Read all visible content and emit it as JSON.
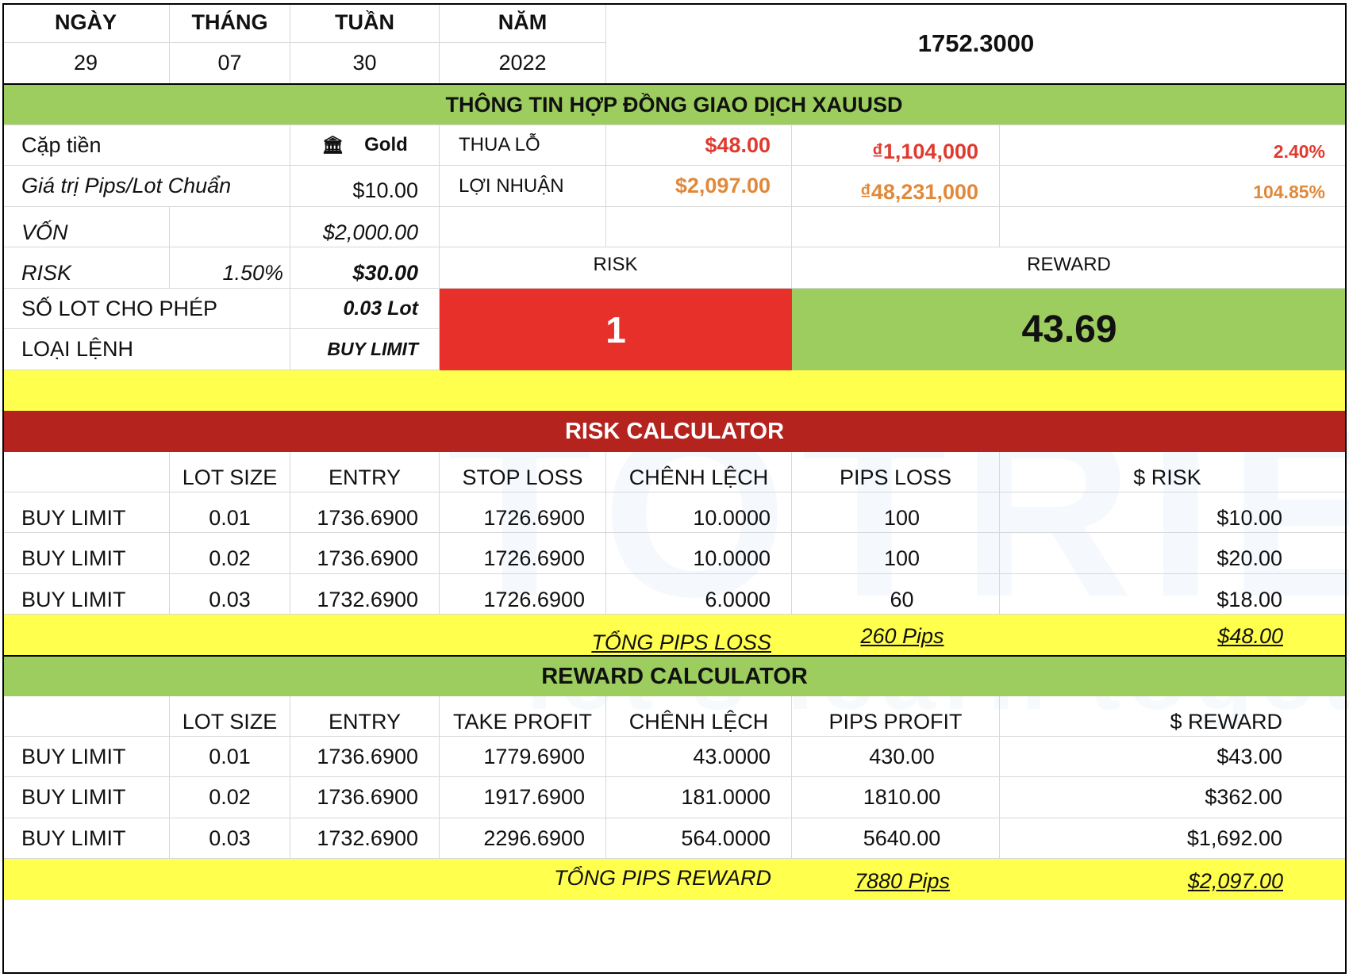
{
  "date_header": {
    "labels": [
      "NGÀY",
      "THÁNG",
      "TUẦN",
      "NĂM"
    ],
    "values": [
      "29",
      "07",
      "30",
      "2022"
    ],
    "price": "1752.3000"
  },
  "contract_title": "THÔNG TIN HỢP ĐỒNG GIAO DỊCH XAUUSD",
  "info": {
    "pair_label": "Cặp tiền",
    "pair_icon": "bank-icon",
    "pair_value": "Gold",
    "pip_value_label": "Giá trị Pips/Lot Chuẩn",
    "pip_value": "$10.00",
    "capital_label": "VỐN",
    "capital_value": "$2,000.00",
    "risk_label": "RISK",
    "risk_percent": "1.50%",
    "risk_value": "$30.00",
    "lots_label": "SỐ LOT CHO PHÉP",
    "lots_value": "0.03 Lot",
    "order_type_label": "LOẠI LỆNH",
    "order_type_value": "BUY LIMIT",
    "loss_label": "THUA LỖ",
    "loss_usd": "$48.00",
    "loss_vnd": "₫1,104,000",
    "loss_pct": "2.40%",
    "profit_label": "LỢI NHUẬN",
    "profit_usd": "$2,097.00",
    "profit_vnd": "₫48,231,000",
    "profit_pct": "104.85%",
    "rr_risk_label": "RISK",
    "rr_reward_label": "REWARD",
    "rr_risk_value": "1",
    "rr_reward_value": "43.69"
  },
  "risk_calc": {
    "title": "RISK CALCULATOR",
    "headers": [
      "",
      "LOT SIZE",
      "ENTRY",
      "STOP LOSS",
      "CHÊNH LỆCH",
      "PIPS LOSS",
      "$ RISK"
    ],
    "rows": [
      [
        "BUY LIMIT",
        "0.01",
        "1736.6900",
        "1726.6900",
        "10.0000",
        "100",
        "$10.00"
      ],
      [
        "BUY LIMIT",
        "0.02",
        "1736.6900",
        "1726.6900",
        "10.0000",
        "100",
        "$20.00"
      ],
      [
        "BUY LIMIT",
        "0.03",
        "1732.6900",
        "1726.6900",
        "6.0000",
        "60",
        "$18.00"
      ]
    ],
    "total_label": "TỔNG PIPS LOSS",
    "total_pips": "260 Pips",
    "total_usd": "$48.00"
  },
  "reward_calc": {
    "title": "REWARD CALCULATOR",
    "headers": [
      "",
      "LOT SIZE",
      "ENTRY",
      "TAKE PROFIT",
      "CHÊNH LỆCH",
      "PIPS PROFIT",
      "$ REWARD"
    ],
    "rows": [
      [
        "BUY LIMIT",
        "0.01",
        "1736.6900",
        "1779.6900",
        "43.0000",
        "430.00",
        "$43.00"
      ],
      [
        "BUY LIMIT",
        "0.02",
        "1736.6900",
        "1917.6900",
        "181.0000",
        "1810.00",
        "$362.00"
      ],
      [
        "BUY LIMIT",
        "0.03",
        "1732.6900",
        "2296.6900",
        "564.0000",
        "5640.00",
        "$1,692.00"
      ]
    ],
    "total_label": "TỔNG PIPS REWARD",
    "total_pips": "7880 Pips",
    "total_usd": "$2,097.00"
  },
  "watermark": {
    "logo_text": "TOTRIEU",
    "tagline": "let's learn together"
  }
}
